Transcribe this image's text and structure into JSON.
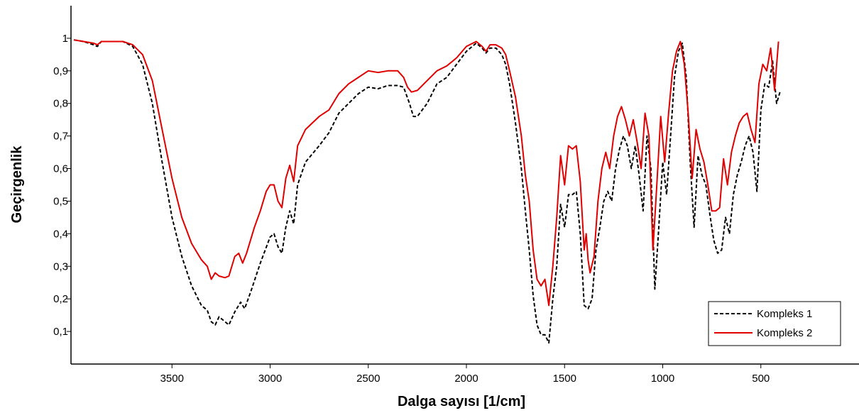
{
  "chart_data": {
    "type": "line",
    "title": "",
    "xlabel": "Dalga sayısı [1/cm]",
    "ylabel": "Geçirgenlik",
    "xlim": [
      4000,
      0
    ],
    "ylim": [
      0,
      1.1
    ],
    "x_reversed": true,
    "grid": false,
    "legend_position": "bottom-right",
    "x_ticks": [
      3500,
      3000,
      2500,
      2000,
      1500,
      1000,
      500
    ],
    "y_ticks": [
      0.1,
      0.2,
      0.3,
      0.4,
      0.5,
      0.6,
      0.7,
      0.8,
      0.9,
      1
    ],
    "y_tick_labels": [
      "0,1",
      "0,2",
      "0,3",
      "0,4",
      "0,5",
      "0,6",
      "0,7",
      "0,8",
      "0,9",
      "1"
    ],
    "series": [
      {
        "name": "Kompleks 1",
        "color": "#000000",
        "dash": "dashed",
        "points": [
          [
            4000,
            0.995
          ],
          [
            3950,
            0.99
          ],
          [
            3900,
            0.98
          ],
          [
            3880,
            0.975
          ],
          [
            3860,
            0.99
          ],
          [
            3800,
            0.99
          ],
          [
            3750,
            0.99
          ],
          [
            3700,
            0.975
          ],
          [
            3650,
            0.92
          ],
          [
            3600,
            0.8
          ],
          [
            3550,
            0.62
          ],
          [
            3500,
            0.45
          ],
          [
            3450,
            0.33
          ],
          [
            3400,
            0.24
          ],
          [
            3350,
            0.18
          ],
          [
            3320,
            0.165
          ],
          [
            3300,
            0.13
          ],
          [
            3280,
            0.12
          ],
          [
            3260,
            0.145
          ],
          [
            3230,
            0.13
          ],
          [
            3210,
            0.12
          ],
          [
            3180,
            0.16
          ],
          [
            3150,
            0.19
          ],
          [
            3130,
            0.17
          ],
          [
            3100,
            0.22
          ],
          [
            3050,
            0.31
          ],
          [
            3000,
            0.39
          ],
          [
            2980,
            0.4
          ],
          [
            2960,
            0.36
          ],
          [
            2940,
            0.34
          ],
          [
            2920,
            0.42
          ],
          [
            2900,
            0.47
          ],
          [
            2880,
            0.43
          ],
          [
            2860,
            0.55
          ],
          [
            2820,
            0.62
          ],
          [
            2750,
            0.67
          ],
          [
            2700,
            0.71
          ],
          [
            2650,
            0.77
          ],
          [
            2600,
            0.8
          ],
          [
            2550,
            0.83
          ],
          [
            2500,
            0.85
          ],
          [
            2450,
            0.845
          ],
          [
            2400,
            0.855
          ],
          [
            2350,
            0.855
          ],
          [
            2320,
            0.85
          ],
          [
            2290,
            0.8
          ],
          [
            2270,
            0.76
          ],
          [
            2250,
            0.76
          ],
          [
            2200,
            0.8
          ],
          [
            2150,
            0.86
          ],
          [
            2100,
            0.88
          ],
          [
            2050,
            0.92
          ],
          [
            2000,
            0.96
          ],
          [
            1950,
            0.985
          ],
          [
            1920,
            0.97
          ],
          [
            1900,
            0.955
          ],
          [
            1880,
            0.97
          ],
          [
            1850,
            0.97
          ],
          [
            1820,
            0.95
          ],
          [
            1800,
            0.92
          ],
          [
            1780,
            0.86
          ],
          [
            1750,
            0.74
          ],
          [
            1720,
            0.6
          ],
          [
            1700,
            0.47
          ],
          [
            1680,
            0.35
          ],
          [
            1660,
            0.21
          ],
          [
            1640,
            0.12
          ],
          [
            1620,
            0.09
          ],
          [
            1600,
            0.09
          ],
          [
            1580,
            0.065
          ],
          [
            1560,
            0.2
          ],
          [
            1540,
            0.3
          ],
          [
            1520,
            0.49
          ],
          [
            1500,
            0.42
          ],
          [
            1480,
            0.52
          ],
          [
            1460,
            0.52
          ],
          [
            1440,
            0.53
          ],
          [
            1420,
            0.4
          ],
          [
            1400,
            0.18
          ],
          [
            1380,
            0.17
          ],
          [
            1360,
            0.2
          ],
          [
            1340,
            0.35
          ],
          [
            1320,
            0.42
          ],
          [
            1300,
            0.5
          ],
          [
            1280,
            0.53
          ],
          [
            1260,
            0.5
          ],
          [
            1240,
            0.6
          ],
          [
            1220,
            0.66
          ],
          [
            1200,
            0.7
          ],
          [
            1180,
            0.67
          ],
          [
            1160,
            0.6
          ],
          [
            1140,
            0.67
          ],
          [
            1120,
            0.58
          ],
          [
            1100,
            0.47
          ],
          [
            1080,
            0.7
          ],
          [
            1060,
            0.6
          ],
          [
            1040,
            0.23
          ],
          [
            1020,
            0.42
          ],
          [
            1000,
            0.62
          ],
          [
            980,
            0.52
          ],
          [
            960,
            0.7
          ],
          [
            940,
            0.88
          ],
          [
            920,
            0.96
          ],
          [
            900,
            0.985
          ],
          [
            880,
            0.88
          ],
          [
            860,
            0.62
          ],
          [
            840,
            0.42
          ],
          [
            820,
            0.64
          ],
          [
            800,
            0.58
          ],
          [
            780,
            0.55
          ],
          [
            760,
            0.46
          ],
          [
            740,
            0.38
          ],
          [
            720,
            0.34
          ],
          [
            700,
            0.35
          ],
          [
            680,
            0.45
          ],
          [
            660,
            0.4
          ],
          [
            640,
            0.52
          ],
          [
            620,
            0.58
          ],
          [
            600,
            0.62
          ],
          [
            580,
            0.67
          ],
          [
            560,
            0.7
          ],
          [
            540,
            0.65
          ],
          [
            520,
            0.53
          ],
          [
            500,
            0.78
          ],
          [
            480,
            0.86
          ],
          [
            460,
            0.85
          ],
          [
            440,
            0.93
          ],
          [
            420,
            0.8
          ],
          [
            400,
            0.84
          ]
        ]
      },
      {
        "name": "Kompleks 2",
        "color": "#e00000",
        "dash": "solid",
        "points": [
          [
            4000,
            0.995
          ],
          [
            3950,
            0.99
          ],
          [
            3900,
            0.985
          ],
          [
            3880,
            0.98
          ],
          [
            3860,
            0.99
          ],
          [
            3800,
            0.99
          ],
          [
            3750,
            0.99
          ],
          [
            3700,
            0.98
          ],
          [
            3650,
            0.95
          ],
          [
            3600,
            0.87
          ],
          [
            3550,
            0.72
          ],
          [
            3500,
            0.57
          ],
          [
            3450,
            0.45
          ],
          [
            3400,
            0.37
          ],
          [
            3350,
            0.32
          ],
          [
            3320,
            0.3
          ],
          [
            3300,
            0.26
          ],
          [
            3280,
            0.28
          ],
          [
            3260,
            0.27
          ],
          [
            3230,
            0.265
          ],
          [
            3210,
            0.27
          ],
          [
            3180,
            0.33
          ],
          [
            3160,
            0.34
          ],
          [
            3140,
            0.31
          ],
          [
            3120,
            0.34
          ],
          [
            3080,
            0.42
          ],
          [
            3050,
            0.47
          ],
          [
            3020,
            0.53
          ],
          [
            3000,
            0.55
          ],
          [
            2980,
            0.55
          ],
          [
            2960,
            0.5
          ],
          [
            2940,
            0.48
          ],
          [
            2920,
            0.57
          ],
          [
            2900,
            0.61
          ],
          [
            2880,
            0.56
          ],
          [
            2860,
            0.67
          ],
          [
            2820,
            0.72
          ],
          [
            2750,
            0.76
          ],
          [
            2700,
            0.78
          ],
          [
            2650,
            0.83
          ],
          [
            2600,
            0.86
          ],
          [
            2550,
            0.88
          ],
          [
            2500,
            0.9
          ],
          [
            2450,
            0.895
          ],
          [
            2400,
            0.9
          ],
          [
            2350,
            0.9
          ],
          [
            2320,
            0.88
          ],
          [
            2300,
            0.85
          ],
          [
            2280,
            0.835
          ],
          [
            2250,
            0.84
          ],
          [
            2200,
            0.87
          ],
          [
            2150,
            0.9
          ],
          [
            2100,
            0.915
          ],
          [
            2050,
            0.94
          ],
          [
            2000,
            0.975
          ],
          [
            1950,
            0.99
          ],
          [
            1920,
            0.975
          ],
          [
            1900,
            0.96
          ],
          [
            1880,
            0.98
          ],
          [
            1850,
            0.98
          ],
          [
            1820,
            0.97
          ],
          [
            1800,
            0.95
          ],
          [
            1780,
            0.9
          ],
          [
            1750,
            0.82
          ],
          [
            1720,
            0.7
          ],
          [
            1700,
            0.58
          ],
          [
            1680,
            0.5
          ],
          [
            1660,
            0.35
          ],
          [
            1640,
            0.26
          ],
          [
            1620,
            0.24
          ],
          [
            1600,
            0.26
          ],
          [
            1580,
            0.18
          ],
          [
            1560,
            0.3
          ],
          [
            1540,
            0.45
          ],
          [
            1520,
            0.64
          ],
          [
            1500,
            0.55
          ],
          [
            1480,
            0.67
          ],
          [
            1460,
            0.66
          ],
          [
            1440,
            0.67
          ],
          [
            1420,
            0.56
          ],
          [
            1400,
            0.35
          ],
          [
            1390,
            0.4
          ],
          [
            1380,
            0.32
          ],
          [
            1370,
            0.28
          ],
          [
            1350,
            0.33
          ],
          [
            1330,
            0.5
          ],
          [
            1310,
            0.6
          ],
          [
            1290,
            0.65
          ],
          [
            1270,
            0.6
          ],
          [
            1250,
            0.7
          ],
          [
            1230,
            0.76
          ],
          [
            1210,
            0.79
          ],
          [
            1190,
            0.75
          ],
          [
            1170,
            0.7
          ],
          [
            1150,
            0.75
          ],
          [
            1130,
            0.68
          ],
          [
            1110,
            0.6
          ],
          [
            1090,
            0.77
          ],
          [
            1070,
            0.7
          ],
          [
            1050,
            0.35
          ],
          [
            1030,
            0.55
          ],
          [
            1010,
            0.76
          ],
          [
            990,
            0.62
          ],
          [
            970,
            0.77
          ],
          [
            950,
            0.9
          ],
          [
            930,
            0.96
          ],
          [
            910,
            0.99
          ],
          [
            890,
            0.92
          ],
          [
            870,
            0.77
          ],
          [
            850,
            0.57
          ],
          [
            830,
            0.72
          ],
          [
            810,
            0.66
          ],
          [
            790,
            0.62
          ],
          [
            770,
            0.55
          ],
          [
            750,
            0.47
          ],
          [
            730,
            0.47
          ],
          [
            710,
            0.48
          ],
          [
            690,
            0.63
          ],
          [
            670,
            0.55
          ],
          [
            650,
            0.65
          ],
          [
            630,
            0.7
          ],
          [
            610,
            0.74
          ],
          [
            590,
            0.76
          ],
          [
            570,
            0.77
          ],
          [
            550,
            0.72
          ],
          [
            530,
            0.68
          ],
          [
            510,
            0.86
          ],
          [
            490,
            0.92
          ],
          [
            470,
            0.9
          ],
          [
            450,
            0.97
          ],
          [
            430,
            0.84
          ],
          [
            410,
            0.99
          ]
        ]
      }
    ]
  }
}
